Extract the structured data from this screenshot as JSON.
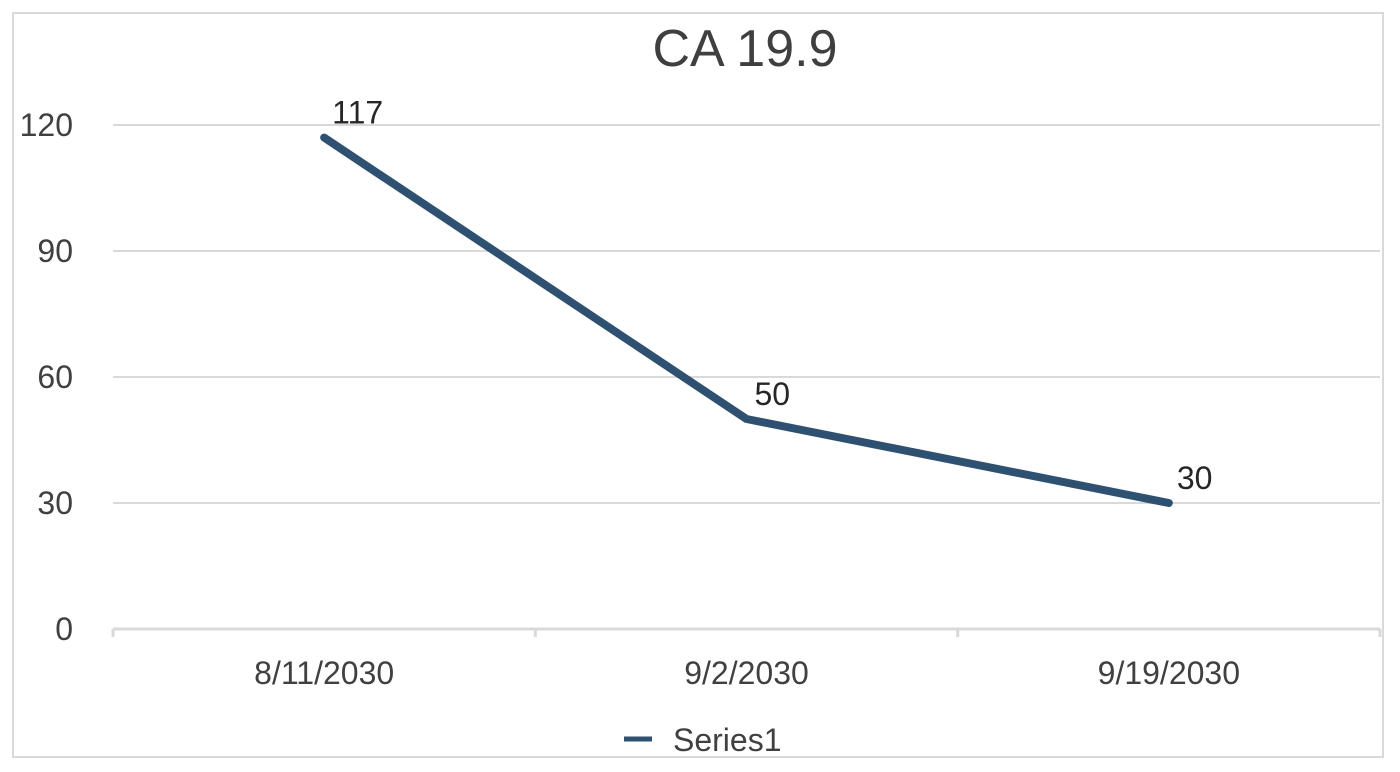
{
  "chart_data": {
    "type": "line",
    "title": "CA 19.9",
    "categories": [
      "8/11/2030",
      "9/2/2030",
      "9/19/2030"
    ],
    "series": [
      {
        "name": "Series1",
        "values": [
          117,
          50,
          30
        ],
        "color": "#2e5172"
      }
    ],
    "data_labels": [
      "117",
      "50",
      "30"
    ],
    "y_ticks": [
      0,
      30,
      60,
      90,
      120
    ],
    "ylim": [
      0,
      120
    ],
    "grid": true,
    "legend_position": "bottom"
  }
}
